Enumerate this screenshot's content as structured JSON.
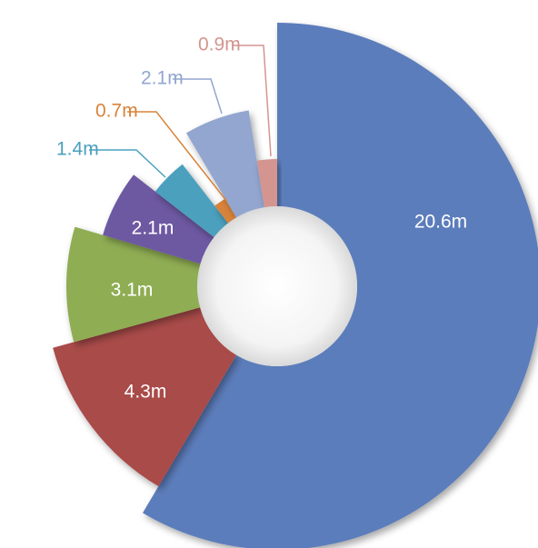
{
  "chart_data": {
    "type": "pie",
    "categories": [
      null,
      null,
      null,
      null,
      null,
      null,
      null,
      null
    ],
    "values": [
      20.6,
      4.3,
      3.1,
      2.1,
      1.4,
      0.7,
      2.1,
      0.9
    ],
    "value_labels": [
      "20.6m",
      "4.3m",
      "3.1m",
      "2.1m",
      "1.4m",
      "0.7m",
      "2.1m",
      "0.9m"
    ],
    "colors": [
      "#5b7dbb",
      "#a94c49",
      "#8fad52",
      "#6d58a2",
      "#4ba0bd",
      "#d8833a",
      "#93a6d0",
      "#d49590"
    ]
  }
}
